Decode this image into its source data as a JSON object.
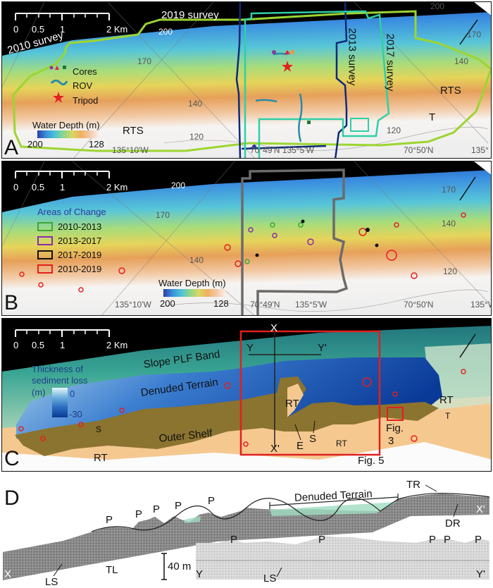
{
  "scale_bar": {
    "labels": [
      "0",
      "0.5",
      "1",
      "2 Km"
    ]
  },
  "panel_a": {
    "letter": "A",
    "survey_labels": {
      "s2019": "2019 survey",
      "s2010": "2010 survey",
      "s2013": "2013 survey",
      "s2017": "2017 survey"
    },
    "contours": [
      "200",
      "200",
      "170",
      "170",
      "140",
      "140",
      "120",
      "120"
    ],
    "legend": {
      "cores": "Cores",
      "rov": "ROV",
      "tripod": "Tripod"
    },
    "colorbar": {
      "title": "Water Depth (m)",
      "min": "200",
      "max": "128"
    },
    "terrain": {
      "rts_left": "RTS",
      "rts_right": "RTS",
      "t": "T"
    },
    "coords": [
      "135°10'W",
      "70°49'N  135°5'W",
      "70°50'N",
      "135°"
    ],
    "colors": {
      "s2019": "#9cd531",
      "s2013": "#0d2a7a",
      "s2017": "#2fcfa6"
    }
  },
  "panel_b": {
    "letter": "B",
    "contours": [
      "200",
      "170",
      "170",
      "140",
      "140",
      "120"
    ],
    "legend": {
      "title": "Areas of Change",
      "items": [
        {
          "label": "2010-2013",
          "color": "#3aa63a"
        },
        {
          "label": "2013-2017",
          "color": "#8a2ca8"
        },
        {
          "label": "2017-2019",
          "color": "#111111"
        },
        {
          "label": "2010-2019",
          "color": "#e42020"
        }
      ]
    },
    "colorbar": {
      "title": "Water Depth (m)",
      "min": "200",
      "max": "128"
    },
    "coords": [
      "135°10'W",
      "70°49'N",
      "135°5'W",
      "70°50'N",
      "135°W"
    ]
  },
  "panel_c": {
    "letter": "C",
    "profile_labels": {
      "x": "X",
      "x_prime": "X'",
      "y": "Y",
      "y_prime": "Y'"
    },
    "zones": {
      "slope": "Slope PLF Band",
      "denuded": "Denuded Terrain",
      "outer_shelf": "Outer Shelf"
    },
    "colorbar": {
      "title_1": "Thickness of",
      "title_2": "sediment loss",
      "unit": "(m)",
      "max": "0",
      "min": "-30"
    },
    "terrain": {
      "rt1": "RT",
      "rt2": "RT",
      "rt3": "RT",
      "rt4": "RT",
      "t": "T",
      "s1": "S",
      "s2": "S",
      "e": "E"
    },
    "figure_refs": {
      "fig3_a": "Fig.",
      "fig3_b": "3",
      "fig5": "Fig. 5"
    }
  },
  "panel_d": {
    "letter": "D",
    "peaks": [
      "P",
      "P",
      "P",
      "P",
      "P"
    ],
    "peaks_y": [
      "P",
      "P",
      "P",
      "P",
      "P"
    ],
    "denuded": "Denuded Terrain",
    "tr": "TR",
    "dr": "DR",
    "x": "X",
    "x_prime": "X'",
    "y": "Y",
    "y_prime": "Y'",
    "ls1": "LS",
    "ls2": "LS",
    "tl": "TL",
    "scale": "40 m"
  }
}
